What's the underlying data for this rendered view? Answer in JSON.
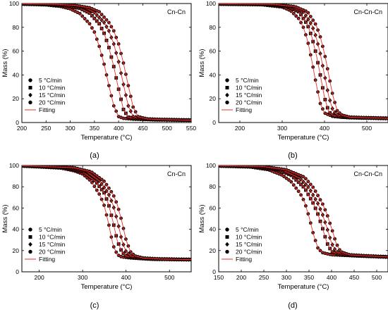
{
  "chart_data": [
    {
      "type": "scatter",
      "title": "Cn-Cn",
      "panel_label": "(a)",
      "xlabel": "Temperature (°C)",
      "ylabel": "Mass (%)",
      "xlim": [
        200,
        550
      ],
      "ylim": [
        0,
        100
      ],
      "xticks": [
        200,
        250,
        300,
        350,
        400,
        450,
        500,
        550
      ],
      "yticks": [
        0,
        20,
        40,
        60,
        80,
        100
      ],
      "legend_position": "bottom-left",
      "series": [
        {
          "name": "5 °C/min",
          "marker": "circle",
          "values_x": [
            200,
            250,
            280,
            300,
            320,
            340,
            350,
            360,
            370,
            380,
            390,
            400,
            410,
            430,
            470,
            550
          ],
          "values_y": [
            99.5,
            98.8,
            97.5,
            95.5,
            91.5,
            83,
            76,
            64,
            49,
            31,
            14,
            5,
            3.5,
            2.8,
            2.3,
            2
          ]
        },
        {
          "name": "10 °C/min",
          "marker": "square",
          "values_x": [
            200,
            250,
            290,
            320,
            340,
            360,
            370,
            380,
            390,
            400,
            410,
            420,
            440,
            470,
            550
          ],
          "values_y": [
            99.6,
            99.2,
            98,
            96,
            92,
            83,
            75,
            63,
            47,
            28,
            11,
            4.5,
            3,
            2.5,
            2
          ]
        },
        {
          "name": "15 °C/min",
          "marker": "diamond",
          "values_x": [
            200,
            260,
            300,
            330,
            350,
            370,
            380,
            390,
            400,
            410,
            420,
            430,
            450,
            480,
            550
          ],
          "values_y": [
            99.7,
            99.3,
            98.5,
            96.5,
            92.5,
            84,
            77,
            66,
            51,
            32,
            14,
            5,
            3,
            2.5,
            2
          ]
        },
        {
          "name": "20 °C/min",
          "marker": "circle",
          "values_x": [
            200,
            270,
            310,
            340,
            360,
            380,
            390,
            400,
            410,
            420,
            430,
            440,
            460,
            490,
            550
          ],
          "values_y": [
            99.8,
            99.4,
            98.5,
            96.5,
            93,
            84,
            77,
            66,
            50,
            31,
            13,
            5,
            3,
            2.5,
            2
          ]
        },
        {
          "name": "Fitting",
          "marker": "line"
        }
      ]
    },
    {
      "type": "scatter",
      "title": "Cn-Cn-Cn",
      "panel_label": "(b)",
      "xlabel": "Temperature (°C)",
      "ylabel": "Mass (%)",
      "xlim": [
        150,
        550
      ],
      "ylim": [
        0,
        100
      ],
      "xticks": [
        200,
        300,
        400,
        500
      ],
      "yticks": [
        0,
        20,
        40,
        60,
        80,
        100
      ],
      "legend_position": "bottom-left",
      "series": [
        {
          "name": "5 °C/min",
          "marker": "circle",
          "values_x": [
            150,
            250,
            300,
            320,
            340,
            350,
            360,
            370,
            380,
            390,
            400,
            420,
            460,
            550
          ],
          "values_y": [
            99.5,
            99,
            97,
            94,
            87,
            80,
            69,
            52,
            33,
            16,
            8,
            5,
            4,
            3.5
          ]
        },
        {
          "name": "10 °C/min",
          "marker": "square",
          "values_x": [
            150,
            260,
            310,
            340,
            360,
            370,
            380,
            390,
            400,
            410,
            420,
            440,
            480,
            550
          ],
          "values_y": [
            99.6,
            99.2,
            97.5,
            93,
            82,
            72,
            58,
            40,
            21,
            9,
            6,
            4.5,
            4,
            3.5
          ]
        },
        {
          "name": "15 °C/min",
          "marker": "diamond",
          "values_x": [
            150,
            270,
            320,
            350,
            370,
            380,
            390,
            400,
            410,
            420,
            430,
            450,
            490,
            550
          ],
          "values_y": [
            99.7,
            99.3,
            97.5,
            93,
            82,
            72,
            58,
            40,
            22,
            10,
            6.5,
            4.5,
            4,
            3.5
          ]
        },
        {
          "name": "20 °C/min",
          "marker": "circle",
          "values_x": [
            150,
            280,
            330,
            360,
            380,
            390,
            400,
            410,
            420,
            430,
            440,
            460,
            500,
            550
          ],
          "values_y": [
            99.8,
            99.4,
            97.5,
            93,
            82,
            72,
            58,
            40,
            22,
            10,
            6.5,
            4.5,
            4,
            3.5
          ]
        },
        {
          "name": "Fitting",
          "marker": "line"
        }
      ]
    },
    {
      "type": "scatter",
      "title": "Cn-Cn",
      "panel_label": "(c)",
      "xlabel": "Temperature (°C)",
      "ylabel": "Mass (%)",
      "xlim": [
        160,
        550
      ],
      "ylim": [
        0,
        100
      ],
      "xticks": [
        200,
        300,
        400,
        500
      ],
      "yticks": [
        0,
        20,
        40,
        60,
        80,
        100
      ],
      "legend_position": "bottom-left",
      "series": [
        {
          "name": "5 °C/min",
          "marker": "circle",
          "values_x": [
            160,
            250,
            280,
            300,
            320,
            340,
            350,
            360,
            370,
            380,
            390,
            410,
            450,
            550
          ],
          "values_y": [
            99.5,
            97.5,
            95,
            92,
            85,
            72,
            62,
            45,
            25,
            16,
            14,
            13,
            12,
            11.5
          ]
        },
        {
          "name": "10 °C/min",
          "marker": "square",
          "values_x": [
            160,
            260,
            300,
            330,
            350,
            360,
            370,
            380,
            390,
            400,
            420,
            460,
            550
          ],
          "values_y": [
            99.6,
            98,
            94,
            85,
            74,
            63,
            47,
            29,
            19,
            15,
            13,
            12,
            11.5
          ]
        },
        {
          "name": "15 °C/min",
          "marker": "diamond",
          "values_x": [
            160,
            270,
            310,
            340,
            360,
            370,
            380,
            390,
            400,
            410,
            430,
            470,
            550
          ],
          "values_y": [
            99.7,
            98,
            94,
            85,
            73,
            63,
            48,
            30,
            19,
            15,
            13,
            12,
            11.5
          ]
        },
        {
          "name": "20 °C/min",
          "marker": "circle",
          "values_x": [
            160,
            280,
            320,
            350,
            370,
            380,
            390,
            400,
            410,
            420,
            440,
            480,
            550
          ],
          "values_y": [
            99.8,
            98,
            94,
            85,
            73,
            63,
            48,
            30,
            19,
            15,
            13,
            12,
            11.5
          ]
        },
        {
          "name": "Fitting",
          "marker": "line"
        }
      ]
    },
    {
      "type": "scatter",
      "title": "Cn-Cn-Cn",
      "panel_label": "(d)",
      "xlabel": "Temperature (°C)",
      "ylabel": "Mass (%)",
      "xlim": [
        150,
        525
      ],
      "ylim": [
        0,
        100
      ],
      "xticks": [
        150,
        200,
        250,
        300,
        350,
        400,
        450,
        500
      ],
      "yticks": [
        0,
        20,
        40,
        60,
        80,
        100
      ],
      "legend_position": "bottom-left",
      "series": [
        {
          "name": "5 °C/min",
          "marker": "circle",
          "values_x": [
            150,
            220,
            260,
            290,
            310,
            330,
            340,
            350,
            360,
            370,
            380,
            400,
            450,
            525
          ],
          "values_y": [
            99.5,
            98.5,
            96,
            91,
            85,
            74,
            66,
            52,
            35,
            22,
            18,
            16,
            15,
            14
          ]
        },
        {
          "name": "10 °C/min",
          "marker": "square",
          "values_x": [
            150,
            230,
            280,
            310,
            340,
            360,
            370,
            380,
            390,
            400,
            420,
            460,
            525
          ],
          "values_y": [
            99.6,
            98.8,
            96,
            91,
            79,
            64,
            54,
            41,
            27,
            19,
            16,
            15,
            14
          ]
        },
        {
          "name": "15 °C/min",
          "marker": "diamond",
          "values_x": [
            150,
            240,
            290,
            330,
            350,
            370,
            380,
            390,
            400,
            410,
            430,
            470,
            525
          ],
          "values_y": [
            99.7,
            99,
            96,
            88,
            79,
            64,
            54,
            41,
            27,
            19,
            16,
            15,
            14
          ]
        },
        {
          "name": "20 °C/min",
          "marker": "circle",
          "values_x": [
            150,
            250,
            300,
            340,
            360,
            380,
            390,
            400,
            410,
            420,
            440,
            480,
            525
          ],
          "values_y": [
            99.8,
            99,
            96,
            89,
            79,
            64,
            54,
            41,
            27,
            19,
            16,
            15,
            14
          ]
        },
        {
          "name": "Fitting",
          "marker": "line"
        }
      ]
    }
  ],
  "colors": {
    "marker_fill": "#5a1212",
    "marker_stroke": "#000000",
    "fit_line": "#e8312a",
    "axis": "#000000",
    "background": "#ffffff"
  }
}
